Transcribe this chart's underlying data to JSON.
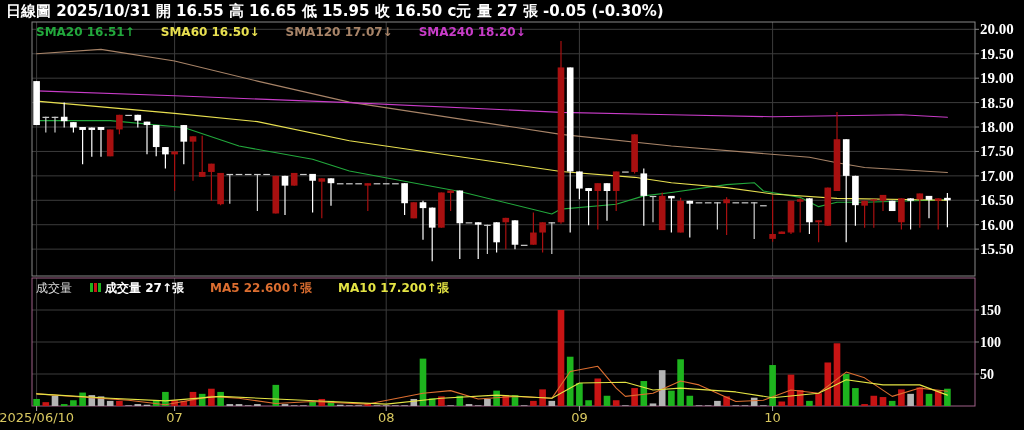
{
  "chart_data": [
    {
      "type": "candlestick",
      "title": "日線圖 2025/10/31 開 16.55 高 16.65 低 15.95 收 16.50 c元 量 27 張 -0.05 (-0.30%)",
      "categories": [
        "2025/06/10",
        null,
        null,
        null,
        null,
        null,
        null,
        null,
        null,
        null,
        null,
        null,
        null,
        null,
        null,
        "07",
        null,
        null,
        null,
        null,
        null,
        null,
        null,
        null,
        null,
        null,
        null,
        null,
        null,
        null,
        null,
        null,
        null,
        null,
        null,
        null,
        null,
        null,
        "08",
        null,
        null,
        null,
        null,
        null,
        null,
        null,
        null,
        null,
        null,
        null,
        null,
        null,
        null,
        null,
        null,
        null,
        null,
        null,
        null,
        "09",
        null,
        null,
        null,
        null,
        null,
        null,
        null,
        null,
        null,
        null,
        null,
        null,
        null,
        null,
        null,
        null,
        null,
        null,
        null,
        null,
        "10",
        null,
        null,
        null,
        null,
        null,
        null,
        null,
        null,
        null,
        null,
        null,
        null,
        null,
        null,
        null,
        null,
        null,
        null,
        null
      ],
      "ohlc": [
        [
          18.94,
          18.94,
          18.04,
          18.04
        ],
        [
          18.21,
          18.21,
          17.89,
          18.21
        ],
        [
          18.21,
          18.21,
          17.89,
          18.21
        ],
        [
          18.21,
          18.5,
          17.99,
          18.12
        ],
        [
          18.1,
          18.1,
          17.89,
          17.99
        ],
        [
          18.0,
          18.0,
          17.24,
          17.94
        ],
        [
          17.99,
          17.99,
          17.39,
          17.94
        ],
        [
          18.0,
          18.0,
          17.39,
          17.94
        ],
        [
          17.4,
          17.95,
          17.4,
          17.95
        ],
        [
          17.95,
          18.25,
          17.85,
          18.25
        ],
        [
          18.25,
          18.25,
          18.25,
          18.25
        ],
        [
          18.25,
          18.25,
          17.99,
          18.13
        ],
        [
          18.11,
          18.11,
          17.44,
          18.04
        ],
        [
          18.04,
          18.04,
          17.4,
          17.59
        ],
        [
          17.59,
          17.59,
          17.15,
          17.44
        ],
        [
          17.44,
          17.5,
          16.69,
          17.5
        ],
        [
          18.04,
          18.04,
          17.24,
          17.7
        ],
        [
          17.7,
          17.81,
          16.9,
          17.81
        ],
        [
          16.98,
          17.82,
          16.98,
          17.08
        ],
        [
          17.08,
          17.25,
          16.49,
          17.25
        ],
        [
          16.42,
          17.06,
          16.4,
          17.06
        ],
        [
          17.04,
          17.04,
          16.43,
          17.04
        ],
        [
          17.04,
          17.04,
          17.04,
          17.04
        ],
        [
          17.04,
          17.04,
          17.04,
          17.04
        ],
        [
          17.04,
          17.04,
          16.28,
          17.04
        ],
        [
          17.04,
          17.04,
          17.04,
          17.04
        ],
        [
          16.23,
          17.0,
          16.23,
          17.0
        ],
        [
          17.0,
          17.0,
          16.2,
          16.8
        ],
        [
          16.8,
          17.06,
          16.8,
          17.06
        ],
        [
          17.04,
          17.04,
          17.04,
          17.04
        ],
        [
          17.04,
          17.04,
          16.25,
          16.9
        ],
        [
          16.88,
          16.95,
          16.13,
          16.95
        ],
        [
          16.95,
          16.95,
          16.39,
          16.85
        ],
        [
          16.85,
          16.85,
          16.85,
          16.85
        ],
        [
          16.85,
          16.85,
          16.85,
          16.85
        ],
        [
          16.85,
          16.85,
          16.85,
          16.85
        ],
        [
          16.8,
          16.85,
          16.28,
          16.85
        ],
        [
          16.85,
          16.85,
          16.85,
          16.85
        ],
        [
          16.85,
          16.85,
          16.85,
          16.85
        ],
        [
          16.85,
          16.85,
          16.85,
          16.85
        ],
        [
          16.85,
          16.85,
          16.2,
          16.44
        ],
        [
          16.13,
          16.46,
          16.13,
          16.46
        ],
        [
          16.46,
          16.49,
          15.69,
          16.34
        ],
        [
          16.35,
          16.35,
          15.25,
          15.94
        ],
        [
          15.94,
          16.66,
          15.94,
          16.66
        ],
        [
          16.65,
          16.7,
          16.28,
          16.7
        ],
        [
          16.7,
          16.7,
          15.3,
          16.03
        ],
        [
          16.05,
          16.05,
          16.05,
          16.05
        ],
        [
          16.05,
          16.05,
          15.3,
          16.0
        ],
        [
          16.0,
          16.0,
          15.4,
          16.0
        ],
        [
          16.05,
          16.05,
          15.43,
          15.64
        ],
        [
          16.05,
          16.14,
          15.5,
          16.14
        ],
        [
          16.09,
          16.09,
          15.5,
          15.59
        ],
        [
          15.59,
          15.59,
          15.59,
          15.59
        ],
        [
          15.59,
          16.25,
          15.59,
          15.84
        ],
        [
          15.84,
          16.05,
          15.43,
          16.05
        ],
        [
          16.05,
          16.05,
          15.4,
          16.05
        ],
        [
          16.05,
          19.76,
          16.02,
          19.22
        ],
        [
          19.22,
          19.22,
          15.84,
          17.09
        ],
        [
          17.09,
          17.09,
          16.52,
          16.74
        ],
        [
          16.75,
          16.75,
          15.99,
          16.69
        ],
        [
          16.69,
          16.85,
          15.9,
          16.85
        ],
        [
          16.85,
          16.85,
          16.08,
          16.69
        ],
        [
          16.69,
          17.09,
          16.28,
          17.09
        ],
        [
          17.09,
          17.09,
          17.09,
          17.09
        ],
        [
          17.08,
          17.85,
          17.05,
          17.85
        ],
        [
          17.05,
          17.15,
          15.98,
          16.59
        ],
        [
          16.59,
          16.59,
          16.05,
          16.59
        ],
        [
          15.89,
          16.66,
          15.89,
          16.59
        ],
        [
          16.59,
          16.59,
          15.84,
          16.54
        ],
        [
          15.84,
          16.55,
          15.84,
          16.49
        ],
        [
          16.49,
          16.49,
          15.74,
          16.43
        ],
        [
          16.46,
          16.46,
          16.46,
          16.46
        ],
        [
          16.46,
          16.46,
          16.46,
          16.46
        ],
        [
          16.46,
          16.46,
          15.9,
          16.46
        ],
        [
          16.44,
          16.56,
          15.79,
          16.52
        ],
        [
          16.46,
          16.46,
          16.46,
          16.46
        ],
        [
          16.46,
          16.46,
          16.46,
          16.46
        ],
        [
          16.46,
          16.46,
          15.71,
          16.46
        ],
        [
          16.4,
          16.4,
          16.4,
          16.4
        ],
        [
          15.71,
          16.6,
          15.65,
          15.81
        ],
        [
          15.81,
          15.86,
          15.81,
          15.86
        ],
        [
          15.84,
          16.49,
          15.81,
          16.49
        ],
        [
          16.47,
          16.54,
          15.84,
          16.52
        ],
        [
          16.54,
          16.54,
          15.81,
          16.05
        ],
        [
          16.05,
          16.09,
          15.64,
          16.09
        ],
        [
          15.98,
          16.76,
          15.98,
          16.76
        ],
        [
          16.69,
          18.31,
          16.69,
          17.75
        ],
        [
          17.75,
          17.75,
          15.64,
          17.0
        ],
        [
          17.0,
          17.0,
          15.98,
          16.4
        ],
        [
          16.39,
          16.49,
          15.94,
          16.49
        ],
        [
          16.49,
          16.52,
          15.94,
          16.52
        ],
        [
          16.49,
          16.61,
          16.28,
          16.61
        ],
        [
          16.49,
          16.49,
          16.28,
          16.28
        ],
        [
          16.05,
          16.54,
          15.9,
          16.54
        ],
        [
          16.54,
          16.54,
          15.9,
          16.49
        ],
        [
          16.52,
          16.64,
          15.94,
          16.64
        ],
        [
          16.59,
          16.59,
          16.13,
          16.51
        ],
        [
          16.49,
          16.54,
          15.9,
          16.54
        ],
        [
          16.55,
          16.65,
          15.95,
          16.5
        ]
      ],
      "series": [
        {
          "name": "SMA20 16.51↑",
          "type": "line",
          "color": "#22a83c",
          "values": [
            18.13,
            null,
            null,
            null,
            null,
            null,
            null,
            null,
            18.13,
            null,
            null,
            null,
            null,
            null,
            null,
            null,
            17.99,
            null,
            null,
            null,
            null,
            null,
            17.61,
            null,
            null,
            null,
            null,
            null,
            null,
            null,
            17.34,
            null,
            null,
            null,
            17.1,
            null,
            null,
            null,
            null,
            null,
            null,
            null,
            null,
            null,
            null,
            null,
            16.68,
            null,
            null,
            null,
            null,
            null,
            null,
            null,
            null,
            null,
            16.22,
            16.32,
            null,
            null,
            null,
            null,
            null,
            16.42,
            null,
            null,
            16.59,
            null,
            null,
            16.66,
            null,
            null,
            null,
            null,
            null,
            16.82,
            null,
            null,
            16.86,
            16.69,
            null,
            null,
            null,
            16.56,
            null,
            16.37,
            null,
            16.46,
            null,
            null,
            16.46,
            null,
            null,
            null,
            null,
            null,
            null,
            null,
            null,
            16.51
          ]
        },
        {
          "name": "SMA60 16.50↓",
          "type": "line",
          "color": "#e8e050",
          "values": [
            18.53,
            null,
            null,
            null,
            null,
            null,
            null,
            null,
            null,
            null,
            null,
            null,
            null,
            null,
            null,
            18.28,
            null,
            null,
            null,
            null,
            null,
            null,
            null,
            null,
            18.11,
            null,
            null,
            null,
            null,
            null,
            null,
            null,
            null,
            null,
            17.72,
            null,
            null,
            null,
            null,
            null,
            null,
            null,
            null,
            null,
            null,
            null,
            null,
            null,
            null,
            null,
            null,
            null,
            null,
            null,
            null,
            null,
            null,
            17.09,
            null,
            null,
            null,
            null,
            null,
            null,
            null,
            16.97,
            null,
            null,
            null,
            16.86,
            null,
            null,
            null,
            null,
            null,
            16.76,
            null,
            null,
            null,
            null,
            16.63,
            null,
            null,
            null,
            null,
            null,
            null,
            16.54,
            null,
            null,
            null,
            null,
            null,
            null,
            null,
            null,
            null,
            null,
            null,
            16.5
          ]
        },
        {
          "name": "SMA120 17.07↓",
          "type": "line",
          "color": "#a88468",
          "values": [
            19.5,
            null,
            null,
            null,
            null,
            null,
            null,
            19.59,
            null,
            null,
            null,
            null,
            null,
            null,
            null,
            19.35,
            null,
            null,
            null,
            null,
            null,
            null,
            null,
            null,
            18.94,
            null,
            null,
            null,
            null,
            null,
            null,
            null,
            null,
            null,
            18.51,
            null,
            null,
            null,
            null,
            null,
            null,
            null,
            null,
            null,
            null,
            null,
            null,
            null,
            null,
            null,
            null,
            null,
            null,
            null,
            null,
            null,
            null,
            17.85,
            null,
            null,
            null,
            null,
            null,
            null,
            null,
            null,
            null,
            null,
            null,
            17.61,
            null,
            null,
            null,
            null,
            null,
            null,
            null,
            null,
            null,
            null,
            null,
            null,
            null,
            null,
            17.38,
            null,
            null,
            17.27,
            null,
            null,
            17.17,
            null,
            null,
            null,
            null,
            null,
            null,
            null,
            null,
            17.07
          ]
        },
        {
          "name": "SMA240 18.20↓",
          "type": "line",
          "color": "#c83cc8",
          "values": [
            18.74,
            null,
            null,
            null,
            null,
            null,
            null,
            null,
            null,
            null,
            null,
            null,
            null,
            null,
            null,
            18.64,
            null,
            null,
            null,
            null,
            null,
            null,
            null,
            null,
            null,
            null,
            null,
            null,
            null,
            null,
            null,
            null,
            null,
            null,
            18.5,
            null,
            null,
            null,
            null,
            null,
            null,
            null,
            null,
            null,
            null,
            null,
            null,
            null,
            null,
            null,
            null,
            null,
            null,
            null,
            null,
            null,
            null,
            18.3,
            null,
            null,
            null,
            null,
            null,
            null,
            null,
            null,
            null,
            null,
            null,
            18.25,
            null,
            null,
            null,
            null,
            null,
            null,
            null,
            null,
            null,
            null,
            18.21,
            null,
            null,
            null,
            null,
            null,
            null,
            18.23,
            null,
            null,
            null,
            null,
            null,
            null,
            18.25,
            null,
            null,
            null,
            null,
            18.2
          ]
        }
      ],
      "ylim": [
        14.95,
        20.15
      ],
      "yticks": [
        {
          "value": 15.5,
          "label": "15.50"
        },
        {
          "value": 16,
          "label": "16.00"
        },
        {
          "value": 16.5,
          "label": "16.50"
        },
        {
          "value": 17,
          "label": "17.00"
        },
        {
          "value": 17.5,
          "label": "17.50"
        },
        {
          "value": 18,
          "label": "18.00"
        },
        {
          "value": 18.5,
          "label": "18.50"
        },
        {
          "value": 19,
          "label": "19.00"
        },
        {
          "value": 19.5,
          "label": "19.50"
        },
        {
          "value": 20,
          "label": "20.00"
        }
      ],
      "grid": true,
      "legend": "top left",
      "tick_labels": "y"
    },
    {
      "type": "bar",
      "title": "成交量",
      "categories": [
        "2025/06/10",
        null,
        null,
        null,
        null,
        null,
        null,
        null,
        null,
        null,
        null,
        null,
        null,
        null,
        null,
        "07",
        null,
        null,
        null,
        null,
        null,
        null,
        null,
        null,
        null,
        null,
        null,
        null,
        null,
        null,
        null,
        null,
        null,
        null,
        null,
        null,
        null,
        null,
        "08",
        null,
        null,
        null,
        null,
        null,
        null,
        null,
        null,
        null,
        null,
        null,
        null,
        null,
        null,
        null,
        null,
        null,
        null,
        null,
        null,
        "09",
        null,
        null,
        null,
        null,
        null,
        null,
        null,
        null,
        null,
        null,
        null,
        null,
        null,
        null,
        null,
        null,
        null,
        null,
        null,
        null,
        "10",
        null,
        null,
        null,
        null,
        null,
        null,
        null,
        null,
        null,
        null,
        null,
        null,
        null,
        null,
        null,
        null,
        null,
        null,
        null
      ],
      "series": [
        {
          "name": "成交量 27↑張",
          "type": "bar",
          "values": [
            11,
            6,
            16,
            3,
            9,
            21,
            17,
            15,
            8,
            8,
            1,
            3,
            2,
            9,
            22,
            9,
            8,
            22,
            19,
            27,
            22,
            3,
            3,
            1,
            3,
            0,
            33,
            3,
            1,
            1,
            7,
            11,
            8,
            2,
            1,
            1,
            4,
            1,
            1,
            1,
            1,
            11,
            74,
            12,
            15,
            1,
            16,
            3,
            1,
            11,
            24,
            16,
            17,
            1,
            8,
            26,
            8,
            150,
            77,
            36,
            9,
            43,
            16,
            9,
            1,
            28,
            39,
            4,
            56,
            24,
            73,
            16,
            1,
            1,
            8,
            15,
            1,
            1,
            13,
            1,
            64,
            7,
            49,
            25,
            8,
            20,
            68,
            98,
            50,
            28,
            3,
            16,
            14,
            8,
            26,
            19,
            29,
            19,
            24,
            27
          ],
          "colors": [
            "#1eb41e",
            "#c81414",
            "#b4b4b4",
            "#1eb41e",
            "#1eb41e",
            "#1eb41e",
            "#b4b4b4",
            "#b4b4b4",
            "#b4b4b4",
            "#c81414",
            "#b4b4b4",
            "#b4b4b4",
            "#b4b4b4",
            "#1eb41e",
            "#1eb41e",
            "#c81414",
            "#c81414",
            "#c81414",
            "#1eb41e",
            "#c81414",
            "#1eb41e",
            "#b4b4b4",
            "#b4b4b4",
            "#b4b4b4",
            "#b4b4b4",
            "#b4b4b4",
            "#1eb41e",
            "#b4b4b4",
            "#b4b4b4",
            "#b4b4b4",
            "#1eb41e",
            "#c81414",
            "#1eb41e",
            "#b4b4b4",
            "#b4b4b4",
            "#b4b4b4",
            "#c81414",
            "#b4b4b4",
            "#b4b4b4",
            "#b4b4b4",
            "#b4b4b4",
            "#b4b4b4",
            "#1eb41e",
            "#1eb41e",
            "#c81414",
            "#b4b4b4",
            "#1eb41e",
            "#b4b4b4",
            "#b4b4b4",
            "#b4b4b4",
            "#1eb41e",
            "#c81414",
            "#1eb41e",
            "#b4b4b4",
            "#c81414",
            "#c81414",
            "#b4b4b4",
            "#c81414",
            "#1eb41e",
            "#1eb41e",
            "#1eb41e",
            "#c81414",
            "#1eb41e",
            "#c81414",
            "#b4b4b4",
            "#c81414",
            "#1eb41e",
            "#b4b4b4",
            "#b4b4b4",
            "#1eb41e",
            "#1eb41e",
            "#1eb41e",
            "#b4b4b4",
            "#b4b4b4",
            "#b4b4b4",
            "#c81414",
            "#b4b4b4",
            "#b4b4b4",
            "#b4b4b4",
            "#b4b4b4",
            "#1eb41e",
            "#c81414",
            "#c81414",
            "#c81414",
            "#1eb41e",
            "#c81414",
            "#c81414",
            "#c81414",
            "#1eb41e",
            "#1eb41e",
            "#c81414",
            "#c81414",
            "#c81414",
            "#1eb41e",
            "#c81414",
            "#b4b4b4",
            "#c81414",
            "#1eb41e",
            "#c81414",
            "#1eb41e"
          ]
        },
        {
          "name": "MA5 22.600↑張",
          "type": "line",
          "color": "#dc6e30",
          "values": [
            19,
            null,
            null,
            null,
            null,
            null,
            null,
            null,
            null,
            null,
            9,
            null,
            null,
            null,
            2,
            null,
            null,
            null,
            null,
            15,
            null,
            null,
            12,
            null,
            null,
            null,
            4,
            null,
            null,
            null,
            7,
            null,
            null,
            null,
            null,
            null,
            3,
            null,
            null,
            null,
            null,
            null,
            20,
            null,
            null,
            24,
            null,
            null,
            11,
            null,
            null,
            null,
            15,
            null,
            null,
            null,
            12,
            null,
            54,
            null,
            null,
            62,
            null,
            28,
            15,
            null,
            null,
            20,
            null,
            null,
            39,
            null,
            33,
            null,
            null,
            null,
            7,
            null,
            null,
            9,
            null,
            null,
            25,
            null,
            null,
            20,
            null,
            null,
            53,
            null,
            44,
            null,
            null,
            15,
            null,
            null,
            28,
            null,
            null,
            23
          ]
        },
        {
          "name": "MA10 17.200↑張",
          "type": "line",
          "color": "#e4e444",
          "values": [
            19,
            null,
            null,
            null,
            null,
            null,
            null,
            null,
            12,
            null,
            null,
            null,
            null,
            null,
            8,
            null,
            null,
            null,
            null,
            null,
            15,
            null,
            null,
            null,
            null,
            null,
            11,
            null,
            null,
            null,
            null,
            null,
            7,
            null,
            null,
            null,
            null,
            null,
            3,
            null,
            null,
            null,
            null,
            null,
            12,
            null,
            null,
            null,
            null,
            null,
            17,
            null,
            null,
            null,
            null,
            null,
            12,
            null,
            null,
            36,
            null,
            null,
            null,
            null,
            37,
            null,
            null,
            25,
            null,
            null,
            28,
            null,
            null,
            null,
            null,
            null,
            22,
            null,
            null,
            null,
            13,
            null,
            null,
            null,
            null,
            20,
            null,
            null,
            41,
            null,
            null,
            null,
            33,
            null,
            null,
            null,
            33,
            null,
            null,
            17
          ]
        }
      ],
      "ylim": [
        0,
        200
      ],
      "yticks": [
        50,
        100,
        150
      ],
      "grid": true,
      "legend": "top left"
    }
  ]
}
